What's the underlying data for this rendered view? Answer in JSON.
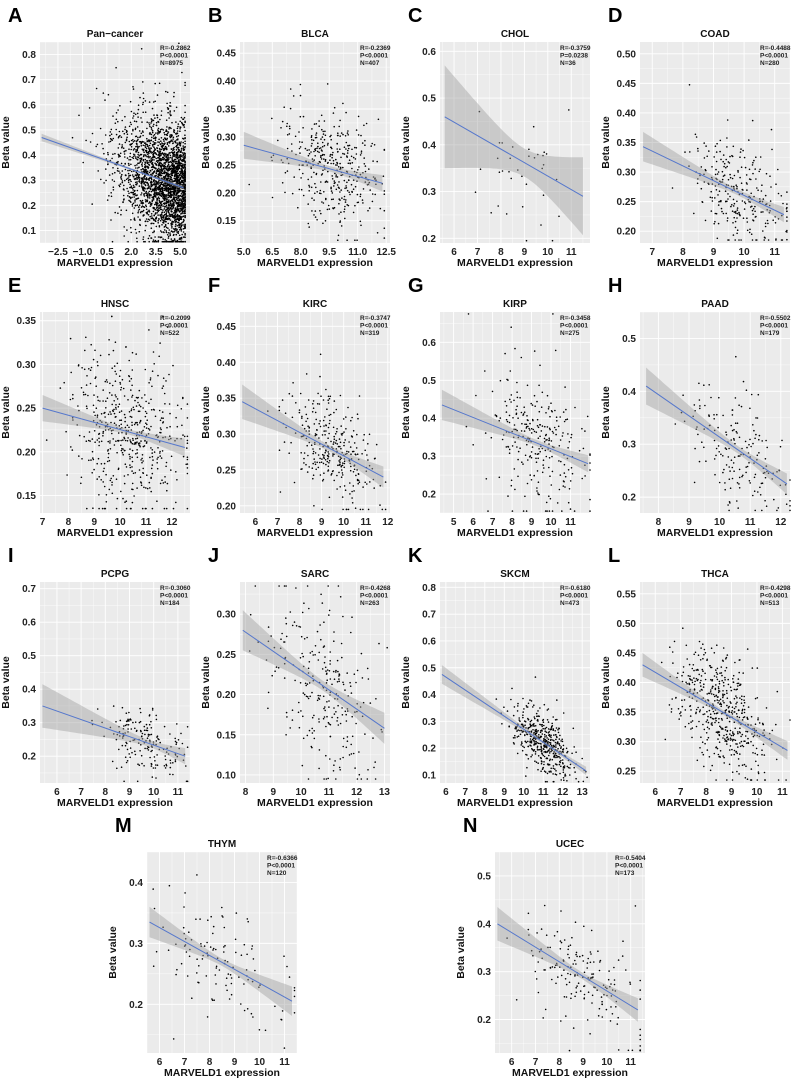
{
  "chart_data": [
    {
      "panel": "A",
      "title": "Pan−cancer",
      "type": "scatter",
      "xlabel": "MARVELD1 expression",
      "ylabel": "Beta value",
      "xlim": [
        -3.6,
        5.6
      ],
      "ylim": [
        0.05,
        0.85
      ],
      "xticks": [
        -2.5,
        -1.0,
        0.5,
        2.0,
        3.5,
        5.0
      ],
      "xtick_labels": [
        "−2.5",
        "−1.0",
        "0.5",
        "2.0",
        "3.5",
        "5.0"
      ],
      "yticks": [
        0.1,
        0.2,
        0.3,
        0.4,
        0.5,
        0.6,
        0.7,
        0.8
      ],
      "ytick_labels": [
        "0.1",
        "0.2",
        "0.3",
        "0.4",
        "0.5",
        "0.6",
        "0.7",
        "0.8"
      ],
      "fit": {
        "x": [
          -3.5,
          5.2
        ],
        "y": [
          0.47,
          0.27
        ]
      },
      "ci_halfwidth": [
        0.004,
        0.015
      ],
      "points": {
        "count_drawn": 2600,
        "x_center": 5.2,
        "x_spread": 1.9,
        "skew": "left",
        "y_sd": 0.11
      },
      "stats": {
        "R": "R=-0.2862",
        "P": "P<0.0001",
        "N": "N=8975"
      }
    },
    {
      "panel": "B",
      "title": "BLCA",
      "type": "scatter",
      "xlabel": "MARVELD1 expression",
      "ylabel": "Beta value",
      "xlim": [
        4.8,
        12.7
      ],
      "ylim": [
        0.11,
        0.47
      ],
      "xticks": [
        5.0,
        6.5,
        8.0,
        9.5,
        11.0,
        12.5
      ],
      "xtick_labels": [
        "5.0",
        "6.5",
        "8.0",
        "9.5",
        "11.0",
        "12.5"
      ],
      "yticks": [
        0.15,
        0.2,
        0.25,
        0.3,
        0.35,
        0.4,
        0.45
      ],
      "ytick_labels": [
        "0.15",
        "0.20",
        "0.25",
        "0.30",
        "0.35",
        "0.40",
        "0.45"
      ],
      "fit": {
        "x": [
          5.0,
          12.3
        ],
        "y": [
          0.285,
          0.217
        ]
      },
      "ci_halfwidth": [
        0.005,
        0.024
      ],
      "points": {
        "count_drawn": 407,
        "x_center": 9.6,
        "x_spread": 1.3,
        "y_sd": 0.045
      },
      "stats": {
        "R": "R=-0.2369",
        "P": "P<0.0001",
        "N": "N=407"
      }
    },
    {
      "panel": "C",
      "title": "CHOL",
      "type": "scatter",
      "xlabel": "MARVELD1 expression",
      "ylabel": "Beta value",
      "xlim": [
        5.4,
        11.8
      ],
      "ylim": [
        0.19,
        0.62
      ],
      "xticks": [
        6,
        7,
        8,
        9,
        10,
        11
      ],
      "xtick_labels": [
        "6",
        "7",
        "8",
        "9",
        "10",
        "11"
      ],
      "yticks": [
        0.2,
        0.3,
        0.4,
        0.5,
        0.6
      ],
      "ytick_labels": [
        "0.2",
        "0.3",
        "0.4",
        "0.5",
        "0.6"
      ],
      "fit": {
        "x": [
          5.6,
          11.5
        ],
        "y": [
          0.46,
          0.29
        ]
      },
      "ci_halfwidth": [
        0.03,
        0.11
      ],
      "points": {
        "count_drawn": 36,
        "x_center": 9.0,
        "x_spread": 1.2,
        "y_sd": 0.08
      },
      "stats": {
        "R": "R=-0.3759",
        "P": "P=0.0238",
        "N": "N=36"
      }
    },
    {
      "panel": "D",
      "title": "COAD",
      "type": "scatter",
      "xlabel": "MARVELD1 expression",
      "ylabel": "Beta value",
      "xlim": [
        6.6,
        11.5
      ],
      "ylim": [
        0.18,
        0.52
      ],
      "xticks": [
        7,
        8,
        9,
        10,
        11
      ],
      "xtick_labels": [
        "7",
        "8",
        "9",
        "10",
        "11"
      ],
      "yticks": [
        0.2,
        0.25,
        0.3,
        0.35,
        0.4,
        0.45,
        0.5
      ],
      "ytick_labels": [
        "0.20",
        "0.25",
        "0.30",
        "0.35",
        "0.40",
        "0.45",
        "0.50"
      ],
      "fit": {
        "x": [
          6.7,
          11.3
        ],
        "y": [
          0.343,
          0.228
        ]
      },
      "ci_halfwidth": [
        0.005,
        0.025
      ],
      "points": {
        "count_drawn": 280,
        "x_center": 9.8,
        "x_spread": 0.8,
        "y_sd": 0.04
      },
      "stats": {
        "R": "R=-0.4488",
        "P": "P<0.0001",
        "N": "N=280"
      }
    },
    {
      "panel": "E",
      "title": "HNSC",
      "type": "scatter",
      "xlabel": "MARVELD1 expression",
      "ylabel": "Beta value",
      "xlim": [
        6.9,
        12.7
      ],
      "ylim": [
        0.13,
        0.36
      ],
      "xticks": [
        7,
        8,
        9,
        10,
        11,
        12
      ],
      "xtick_labels": [
        "7",
        "8",
        "9",
        "10",
        "11",
        "12"
      ],
      "yticks": [
        0.15,
        0.2,
        0.25,
        0.3,
        0.35
      ],
      "ytick_labels": [
        "0.15",
        "0.20",
        "0.25",
        "0.30",
        "0.35"
      ],
      "fit": {
        "x": [
          7.0,
          12.5
        ],
        "y": [
          0.25,
          0.205
        ]
      },
      "ci_halfwidth": [
        0.003,
        0.015
      ],
      "points": {
        "count_drawn": 522,
        "x_center": 10.3,
        "x_spread": 1.1,
        "y_sd": 0.04
      },
      "stats": {
        "R": "R=-0.2099",
        "P": "P<0.0001",
        "N": "N=522"
      }
    },
    {
      "panel": "F",
      "title": "KIRC",
      "type": "scatter",
      "xlabel": "MARVELD1 expression",
      "ylabel": "Beta value",
      "xlim": [
        5.3,
        12.1
      ],
      "ylim": [
        0.19,
        0.47
      ],
      "xticks": [
        6,
        7,
        8,
        9,
        10,
        11,
        12
      ],
      "xtick_labels": [
        "6",
        "7",
        "8",
        "9",
        "10",
        "11",
        "12"
      ],
      "yticks": [
        0.2,
        0.25,
        0.3,
        0.35,
        0.4,
        0.45
      ],
      "ytick_labels": [
        "0.20",
        "0.25",
        "0.30",
        "0.35",
        "0.40",
        "0.45"
      ],
      "fit": {
        "x": [
          5.4,
          11.8
        ],
        "y": [
          0.345,
          0.24
        ]
      },
      "ci_halfwidth": [
        0.004,
        0.024
      ],
      "points": {
        "count_drawn": 319,
        "x_center": 9.4,
        "x_spread": 1.0,
        "y_sd": 0.035
      },
      "stats": {
        "R": "R=-0.3747",
        "P": "P<0.0001",
        "N": "N=319"
      }
    },
    {
      "panel": "G",
      "title": "KIRP",
      "type": "scatter",
      "xlabel": "MARVELD1 expression",
      "ylabel": "Beta value",
      "xlim": [
        4.3,
        12.0
      ],
      "ylim": [
        0.15,
        0.68
      ],
      "xticks": [
        5,
        6,
        7,
        8,
        9,
        10,
        11
      ],
      "xtick_labels": [
        "5",
        "6",
        "7",
        "8",
        "9",
        "10",
        "11"
      ],
      "yticks": [
        0.2,
        0.3,
        0.4,
        0.5,
        0.6
      ],
      "ytick_labels": [
        "0.2",
        "0.3",
        "0.4",
        "0.5",
        "0.6"
      ],
      "fit": {
        "x": [
          4.4,
          11.9
        ],
        "y": [
          0.435,
          0.28
        ]
      },
      "ci_halfwidth": [
        0.008,
        0.04
      ],
      "points": {
        "count_drawn": 275,
        "x_center": 9.3,
        "x_spread": 1.3,
        "y_sd": 0.08
      },
      "stats": {
        "R": "R=-0.3458",
        "P": "P<0.0001",
        "N": "N=275"
      }
    },
    {
      "panel": "H",
      "title": "PAAD",
      "type": "scatter",
      "xlabel": "MARVELD1 expression",
      "ylabel": "Beta value",
      "xlim": [
        7.4,
        12.3
      ],
      "ylim": [
        0.17,
        0.55
      ],
      "xticks": [
        8,
        9,
        10,
        11,
        12
      ],
      "xtick_labels": [
        "8",
        "9",
        "10",
        "11",
        "12"
      ],
      "yticks": [
        0.2,
        0.3,
        0.4,
        0.5
      ],
      "ytick_labels": [
        "0.2",
        "0.3",
        "0.4",
        "0.5"
      ],
      "fit": {
        "x": [
          7.6,
          12.2
        ],
        "y": [
          0.41,
          0.225
        ]
      },
      "ci_halfwidth": [
        0.007,
        0.035
      ],
      "points": {
        "count_drawn": 179,
        "x_center": 10.6,
        "x_spread": 0.8,
        "y_sd": 0.05
      },
      "stats": {
        "R": "R=-0.5502",
        "P": "P<0.0001",
        "N": "N=179"
      }
    },
    {
      "panel": "I",
      "title": "PCPG",
      "type": "scatter",
      "xlabel": "MARVELD1 expression",
      "ylabel": "Beta value",
      "xlim": [
        5.3,
        11.5
      ],
      "ylim": [
        0.12,
        0.72
      ],
      "xticks": [
        6,
        7,
        8,
        9,
        10,
        11
      ],
      "xtick_labels": [
        "6",
        "7",
        "8",
        "9",
        "10",
        "11"
      ],
      "yticks": [
        0.2,
        0.3,
        0.4,
        0.5,
        0.6,
        0.7
      ],
      "ytick_labels": [
        "0.2",
        "0.3",
        "0.4",
        "0.5",
        "0.6",
        "0.7"
      ],
      "fit": {
        "x": [
          5.4,
          11.3
        ],
        "y": [
          0.35,
          0.2
        ]
      },
      "ci_halfwidth": [
        0.01,
        0.065
      ],
      "points": {
        "count_drawn": 184,
        "x_center": 9.8,
        "x_spread": 0.8,
        "y_sd": 0.045
      },
      "stats": {
        "R": "R=-0.3060",
        "P": "P<0.0001",
        "N": "N=184"
      }
    },
    {
      "panel": "J",
      "title": "SARC",
      "type": "scatter",
      "xlabel": "MARVELD1 expression",
      "ylabel": "Beta value",
      "xlim": [
        7.8,
        13.2
      ],
      "ylim": [
        0.09,
        0.34
      ],
      "xticks": [
        8,
        9,
        10,
        11,
        12,
        13
      ],
      "xtick_labels": [
        "8",
        "9",
        "10",
        "11",
        "12",
        "13"
      ],
      "yticks": [
        0.1,
        0.15,
        0.2,
        0.25,
        0.3
      ],
      "ytick_labels": [
        "0.10",
        "0.15",
        "0.20",
        "0.25",
        "0.30"
      ],
      "fit": {
        "x": [
          7.9,
          13.0
        ],
        "y": [
          0.28,
          0.158
        ]
      },
      "ci_halfwidth": [
        0.006,
        0.025
      ],
      "points": {
        "count_drawn": 263,
        "x_center": 10.8,
        "x_spread": 1.0,
        "y_sd": 0.05
      },
      "stats": {
        "R": "R=-0.4268",
        "P": "P<0.0001",
        "N": "N=263"
      }
    },
    {
      "panel": "K",
      "title": "SKCM",
      "type": "scatter",
      "xlabel": "MARVELD1 expression",
      "ylabel": "Beta value",
      "xlim": [
        5.7,
        13.4
      ],
      "ylim": [
        0.07,
        0.82
      ],
      "xticks": [
        6,
        7,
        8,
        9,
        10,
        11,
        12,
        13
      ],
      "xtick_labels": [
        "6",
        "7",
        "8",
        "9",
        "10",
        "11",
        "12",
        "13"
      ],
      "yticks": [
        0.1,
        0.2,
        0.3,
        0.4,
        0.5,
        0.6,
        0.7,
        0.8
      ],
      "ytick_labels": [
        "0.1",
        "0.2",
        "0.3",
        "0.4",
        "0.5",
        "0.6",
        "0.7",
        "0.8"
      ],
      "fit": {
        "x": [
          5.8,
          13.2
        ],
        "y": [
          0.475,
          0.115
        ]
      },
      "ci_halfwidth": [
        0.006,
        0.035
      ],
      "points": {
        "count_drawn": 473,
        "x_center": 11.0,
        "x_spread": 0.8,
        "y_sd": 0.05
      },
      "stats": {
        "R": "R=-0.6180",
        "P": "P<0.0001",
        "N": "N=473"
      }
    },
    {
      "panel": "L",
      "title": "THCA",
      "type": "scatter",
      "xlabel": "MARVELD1 expression",
      "ylabel": "Beta value",
      "xlim": [
        5.4,
        11.3
      ],
      "ylim": [
        0.23,
        0.57
      ],
      "xticks": [
        6,
        7,
        8,
        9,
        10,
        11
      ],
      "xtick_labels": [
        "6",
        "7",
        "8",
        "9",
        "10",
        "11"
      ],
      "yticks": [
        0.25,
        0.3,
        0.35,
        0.4,
        0.45,
        0.5,
        0.55
      ],
      "ytick_labels": [
        "0.25",
        "0.30",
        "0.35",
        "0.40",
        "0.45",
        "0.50",
        "0.55"
      ],
      "fit": {
        "x": [
          5.5,
          11.2
        ],
        "y": [
          0.43,
          0.285
        ]
      },
      "ci_halfwidth": [
        0.004,
        0.02
      ],
      "points": {
        "count_drawn": 513,
        "x_center": 8.7,
        "x_spread": 0.9,
        "y_sd": 0.045
      },
      "stats": {
        "R": "R=-0.4298",
        "P": "P<0.0001",
        "N": "N=513"
      }
    },
    {
      "panel": "M",
      "title": "THYM",
      "type": "scatter",
      "xlabel": "MARVELD1 expression",
      "ylabel": "Beta value",
      "xlim": [
        5.5,
        11.5
      ],
      "ylim": [
        0.12,
        0.45
      ],
      "xticks": [
        6,
        7,
        8,
        9,
        10,
        11
      ],
      "xtick_labels": [
        "6",
        "7",
        "8",
        "9",
        "10",
        "11"
      ],
      "yticks": [
        0.2,
        0.3,
        0.4
      ],
      "ytick_labels": [
        "0.2",
        "0.3",
        "0.4"
      ],
      "fit": {
        "x": [
          5.6,
          11.3
        ],
        "y": [
          0.335,
          0.205
        ]
      },
      "ci_halfwidth": [
        0.006,
        0.025
      ],
      "points": {
        "count_drawn": 120,
        "x_center": 8.5,
        "x_spread": 1.3,
        "y_sd": 0.04
      },
      "stats": {
        "R": "R=-0.6366",
        "P": "P<0.0001",
        "N": "N=120"
      }
    },
    {
      "panel": "N",
      "title": "UCEC",
      "type": "scatter",
      "xlabel": "MARVELD1 expression",
      "ylabel": "Beta value",
      "xlim": [
        5.3,
        11.6
      ],
      "ylim": [
        0.13,
        0.55
      ],
      "xticks": [
        6,
        7,
        8,
        9,
        10,
        11
      ],
      "xtick_labels": [
        "6",
        "7",
        "8",
        "9",
        "10",
        "11"
      ],
      "yticks": [
        0.2,
        0.3,
        0.4,
        0.5
      ],
      "ytick_labels": [
        "0.2",
        "0.3",
        "0.4",
        "0.5"
      ],
      "fit": {
        "x": [
          5.4,
          11.3
        ],
        "y": [
          0.4,
          0.22
        ]
      },
      "ci_halfwidth": [
        0.007,
        0.035
      ],
      "points": {
        "count_drawn": 173,
        "x_center": 8.9,
        "x_spread": 1.2,
        "y_sd": 0.05
      },
      "stats": {
        "R": "R=-0.5404",
        "P": "P<0.0001",
        "N": "N=173"
      }
    }
  ],
  "colors": {
    "panel_bg": "#ebebeb",
    "grid": "#ffffff",
    "fit_line": "#5577cc",
    "ci_band": "#a0a0a0",
    "points": "#000000"
  }
}
